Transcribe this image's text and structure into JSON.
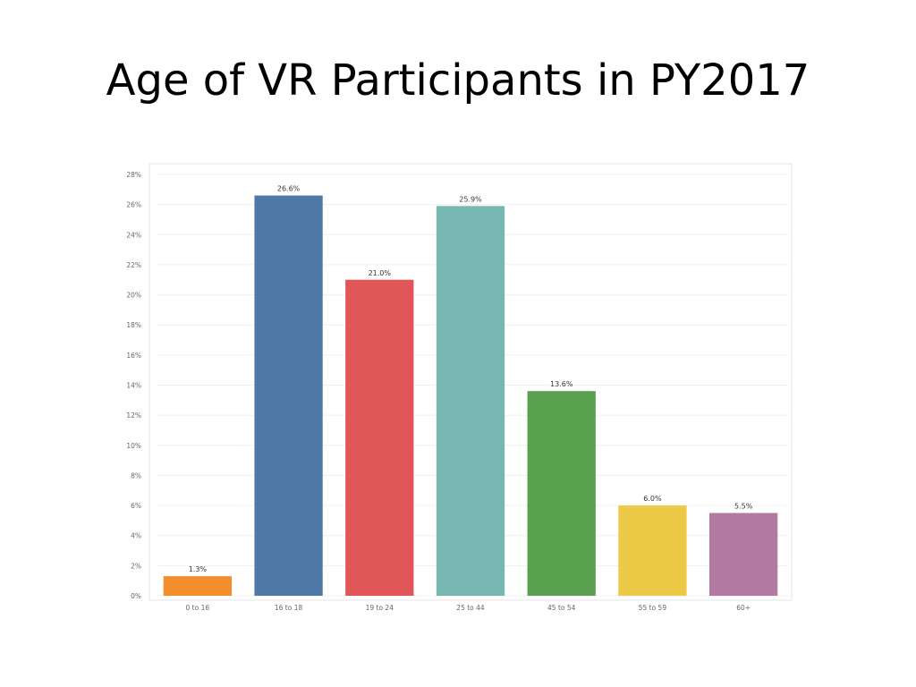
{
  "slide": {
    "title": "Age of VR Participants in PY2017"
  },
  "chart_data": {
    "type": "bar",
    "categories": [
      "0 to 16",
      "16 to 18",
      "19 to 24",
      "25 to 44",
      "45 to 54",
      "55 to 59",
      "60+"
    ],
    "values": [
      1.3,
      26.6,
      21.0,
      25.9,
      13.6,
      6.0,
      5.5
    ],
    "value_labels": [
      "1.3%",
      "26.6%",
      "21.0%",
      "25.9%",
      "13.6%",
      "6.0%",
      "5.5%"
    ],
    "colors": [
      "#f28e2b",
      "#4e79a7",
      "#e15759",
      "#76b7b2",
      "#59a14f",
      "#edc948",
      "#b07aa1"
    ],
    "ylim": [
      0,
      28
    ],
    "yticks": [
      0,
      2,
      4,
      6,
      8,
      10,
      12,
      14,
      16,
      18,
      20,
      22,
      24,
      26,
      28
    ],
    "ytick_labels": [
      "0%",
      "2%",
      "4%",
      "6%",
      "8%",
      "10%",
      "12%",
      "14%",
      "16%",
      "18%",
      "20%",
      "22%",
      "24%",
      "26%",
      "28%"
    ],
    "grid": true,
    "xlabel": "",
    "ylabel": ""
  }
}
